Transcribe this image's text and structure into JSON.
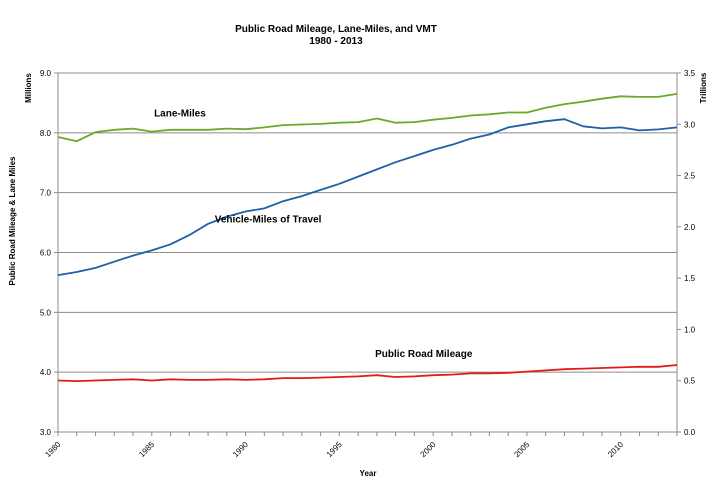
{
  "chart_data": {
    "type": "line",
    "title": "Public Road Mileage, Lane-Miles, and VMT",
    "subtitle": "1980 - 2013",
    "xlabel": "Year",
    "ylabel_left": "Public Road Mileage & Lane Miles",
    "ylabel_left_unit": "Millions",
    "ylabel_right_unit": "Trillions",
    "xlim": [
      1980,
      2013
    ],
    "ylim_left": [
      3.0,
      9.0
    ],
    "ylim_right": [
      0.0,
      3.5
    ],
    "x_ticks": [
      "1980",
      "1985",
      "1990",
      "1995",
      "2000",
      "2005",
      "2010"
    ],
    "y_left_ticks": [
      "3.0",
      "4.0",
      "5.0",
      "6.0",
      "7.0",
      "8.0",
      "9.0"
    ],
    "y_right_ticks": [
      "0.0",
      "0.5",
      "1.0",
      "1.5",
      "2.0",
      "2.5",
      "3.0",
      "3.5"
    ],
    "grid": "horizontal",
    "x": [
      1980,
      1981,
      1982,
      1983,
      1984,
      1985,
      1986,
      1987,
      1988,
      1989,
      1990,
      1991,
      1992,
      1993,
      1994,
      1995,
      1996,
      1997,
      1998,
      1999,
      2000,
      2001,
      2002,
      2003,
      2004,
      2005,
      2006,
      2007,
      2008,
      2009,
      2010,
      2011,
      2012,
      2013
    ],
    "series": [
      {
        "name": "Lane-Miles",
        "axis": "left",
        "color": "#6aaa2a",
        "values": [
          7.93,
          7.86,
          8.01,
          8.05,
          8.07,
          8.02,
          8.05,
          8.05,
          8.05,
          8.07,
          8.06,
          8.09,
          8.13,
          8.14,
          8.15,
          8.17,
          8.18,
          8.24,
          8.17,
          8.18,
          8.22,
          8.25,
          8.29,
          8.31,
          8.34,
          8.34,
          8.42,
          8.48,
          8.52,
          8.57,
          8.61,
          8.6,
          8.6,
          8.65
        ]
      },
      {
        "name": "Vehicle-Miles of Travel",
        "axis": "right",
        "color": "#1f5fa8",
        "values": [
          1.53,
          1.56,
          1.6,
          1.66,
          1.72,
          1.77,
          1.83,
          1.92,
          2.03,
          2.1,
          2.15,
          2.18,
          2.25,
          2.3,
          2.36,
          2.42,
          2.49,
          2.56,
          2.63,
          2.69,
          2.75,
          2.8,
          2.86,
          2.9,
          2.97,
          3.0,
          3.03,
          3.05,
          2.98,
          2.96,
          2.97,
          2.94,
          2.95,
          2.97
        ]
      },
      {
        "name": "Public Road Mileage",
        "axis": "left",
        "color": "#e31a1c",
        "values": [
          3.86,
          3.85,
          3.86,
          3.87,
          3.88,
          3.86,
          3.88,
          3.87,
          3.87,
          3.88,
          3.87,
          3.88,
          3.9,
          3.9,
          3.91,
          3.92,
          3.93,
          3.95,
          3.92,
          3.93,
          3.95,
          3.96,
          3.98,
          3.98,
          3.99,
          4.01,
          4.03,
          4.05,
          4.06,
          4.07,
          4.08,
          4.09,
          4.09,
          4.12
        ]
      }
    ],
    "annotations": [
      {
        "text": "Lane-Miles",
        "x": 1986.5,
        "y_left": 8.27
      },
      {
        "text": "Vehicle-Miles of Travel",
        "x": 1991.2,
        "y_left": 6.5
      },
      {
        "text": "Public Road Mileage",
        "x": 1999.5,
        "y_left": 4.25
      }
    ]
  }
}
